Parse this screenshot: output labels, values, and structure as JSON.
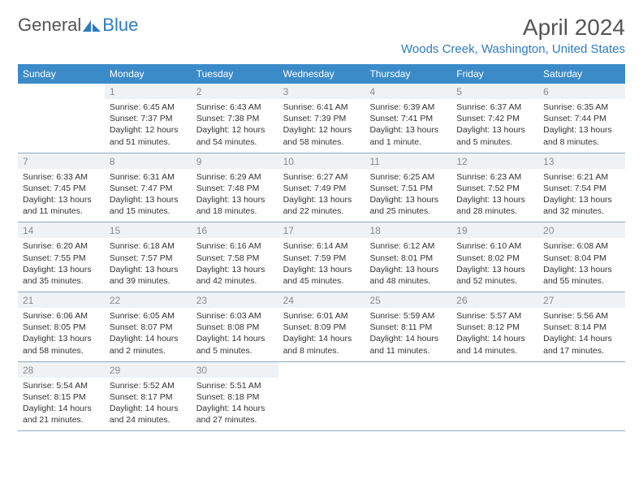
{
  "logo": {
    "part1": "General",
    "part2": "Blue"
  },
  "title": "April 2024",
  "location": "Woods Creek, Washington, United States",
  "colors": {
    "header_bg": "#3b8bc9",
    "header_text": "#ffffff",
    "accent": "#2d7cc1",
    "daynum_bg": "#eef2f5",
    "border": "#8aa9c2"
  },
  "weekdays": [
    "Sunday",
    "Monday",
    "Tuesday",
    "Wednesday",
    "Thursday",
    "Friday",
    "Saturday"
  ],
  "weeks": [
    [
      {
        "blank": true
      },
      {
        "day": "1",
        "sunrise": "Sunrise: 6:45 AM",
        "sunset": "Sunset: 7:37 PM",
        "daylight1": "Daylight: 12 hours",
        "daylight2": "and 51 minutes."
      },
      {
        "day": "2",
        "sunrise": "Sunrise: 6:43 AM",
        "sunset": "Sunset: 7:38 PM",
        "daylight1": "Daylight: 12 hours",
        "daylight2": "and 54 minutes."
      },
      {
        "day": "3",
        "sunrise": "Sunrise: 6:41 AM",
        "sunset": "Sunset: 7:39 PM",
        "daylight1": "Daylight: 12 hours",
        "daylight2": "and 58 minutes."
      },
      {
        "day": "4",
        "sunrise": "Sunrise: 6:39 AM",
        "sunset": "Sunset: 7:41 PM",
        "daylight1": "Daylight: 13 hours",
        "daylight2": "and 1 minute."
      },
      {
        "day": "5",
        "sunrise": "Sunrise: 6:37 AM",
        "sunset": "Sunset: 7:42 PM",
        "daylight1": "Daylight: 13 hours",
        "daylight2": "and 5 minutes."
      },
      {
        "day": "6",
        "sunrise": "Sunrise: 6:35 AM",
        "sunset": "Sunset: 7:44 PM",
        "daylight1": "Daylight: 13 hours",
        "daylight2": "and 8 minutes."
      }
    ],
    [
      {
        "day": "7",
        "sunrise": "Sunrise: 6:33 AM",
        "sunset": "Sunset: 7:45 PM",
        "daylight1": "Daylight: 13 hours",
        "daylight2": "and 11 minutes."
      },
      {
        "day": "8",
        "sunrise": "Sunrise: 6:31 AM",
        "sunset": "Sunset: 7:47 PM",
        "daylight1": "Daylight: 13 hours",
        "daylight2": "and 15 minutes."
      },
      {
        "day": "9",
        "sunrise": "Sunrise: 6:29 AM",
        "sunset": "Sunset: 7:48 PM",
        "daylight1": "Daylight: 13 hours",
        "daylight2": "and 18 minutes."
      },
      {
        "day": "10",
        "sunrise": "Sunrise: 6:27 AM",
        "sunset": "Sunset: 7:49 PM",
        "daylight1": "Daylight: 13 hours",
        "daylight2": "and 22 minutes."
      },
      {
        "day": "11",
        "sunrise": "Sunrise: 6:25 AM",
        "sunset": "Sunset: 7:51 PM",
        "daylight1": "Daylight: 13 hours",
        "daylight2": "and 25 minutes."
      },
      {
        "day": "12",
        "sunrise": "Sunrise: 6:23 AM",
        "sunset": "Sunset: 7:52 PM",
        "daylight1": "Daylight: 13 hours",
        "daylight2": "and 28 minutes."
      },
      {
        "day": "13",
        "sunrise": "Sunrise: 6:21 AM",
        "sunset": "Sunset: 7:54 PM",
        "daylight1": "Daylight: 13 hours",
        "daylight2": "and 32 minutes."
      }
    ],
    [
      {
        "day": "14",
        "sunrise": "Sunrise: 6:20 AM",
        "sunset": "Sunset: 7:55 PM",
        "daylight1": "Daylight: 13 hours",
        "daylight2": "and 35 minutes."
      },
      {
        "day": "15",
        "sunrise": "Sunrise: 6:18 AM",
        "sunset": "Sunset: 7:57 PM",
        "daylight1": "Daylight: 13 hours",
        "daylight2": "and 39 minutes."
      },
      {
        "day": "16",
        "sunrise": "Sunrise: 6:16 AM",
        "sunset": "Sunset: 7:58 PM",
        "daylight1": "Daylight: 13 hours",
        "daylight2": "and 42 minutes."
      },
      {
        "day": "17",
        "sunrise": "Sunrise: 6:14 AM",
        "sunset": "Sunset: 7:59 PM",
        "daylight1": "Daylight: 13 hours",
        "daylight2": "and 45 minutes."
      },
      {
        "day": "18",
        "sunrise": "Sunrise: 6:12 AM",
        "sunset": "Sunset: 8:01 PM",
        "daylight1": "Daylight: 13 hours",
        "daylight2": "and 48 minutes."
      },
      {
        "day": "19",
        "sunrise": "Sunrise: 6:10 AM",
        "sunset": "Sunset: 8:02 PM",
        "daylight1": "Daylight: 13 hours",
        "daylight2": "and 52 minutes."
      },
      {
        "day": "20",
        "sunrise": "Sunrise: 6:08 AM",
        "sunset": "Sunset: 8:04 PM",
        "daylight1": "Daylight: 13 hours",
        "daylight2": "and 55 minutes."
      }
    ],
    [
      {
        "day": "21",
        "sunrise": "Sunrise: 6:06 AM",
        "sunset": "Sunset: 8:05 PM",
        "daylight1": "Daylight: 13 hours",
        "daylight2": "and 58 minutes."
      },
      {
        "day": "22",
        "sunrise": "Sunrise: 6:05 AM",
        "sunset": "Sunset: 8:07 PM",
        "daylight1": "Daylight: 14 hours",
        "daylight2": "and 2 minutes."
      },
      {
        "day": "23",
        "sunrise": "Sunrise: 6:03 AM",
        "sunset": "Sunset: 8:08 PM",
        "daylight1": "Daylight: 14 hours",
        "daylight2": "and 5 minutes."
      },
      {
        "day": "24",
        "sunrise": "Sunrise: 6:01 AM",
        "sunset": "Sunset: 8:09 PM",
        "daylight1": "Daylight: 14 hours",
        "daylight2": "and 8 minutes."
      },
      {
        "day": "25",
        "sunrise": "Sunrise: 5:59 AM",
        "sunset": "Sunset: 8:11 PM",
        "daylight1": "Daylight: 14 hours",
        "daylight2": "and 11 minutes."
      },
      {
        "day": "26",
        "sunrise": "Sunrise: 5:57 AM",
        "sunset": "Sunset: 8:12 PM",
        "daylight1": "Daylight: 14 hours",
        "daylight2": "and 14 minutes."
      },
      {
        "day": "27",
        "sunrise": "Sunrise: 5:56 AM",
        "sunset": "Sunset: 8:14 PM",
        "daylight1": "Daylight: 14 hours",
        "daylight2": "and 17 minutes."
      }
    ],
    [
      {
        "day": "28",
        "sunrise": "Sunrise: 5:54 AM",
        "sunset": "Sunset: 8:15 PM",
        "daylight1": "Daylight: 14 hours",
        "daylight2": "and 21 minutes."
      },
      {
        "day": "29",
        "sunrise": "Sunrise: 5:52 AM",
        "sunset": "Sunset: 8:17 PM",
        "daylight1": "Daylight: 14 hours",
        "daylight2": "and 24 minutes."
      },
      {
        "day": "30",
        "sunrise": "Sunrise: 5:51 AM",
        "sunset": "Sunset: 8:18 PM",
        "daylight1": "Daylight: 14 hours",
        "daylight2": "and 27 minutes."
      },
      {
        "blank": true
      },
      {
        "blank": true
      },
      {
        "blank": true
      },
      {
        "blank": true
      }
    ]
  ]
}
